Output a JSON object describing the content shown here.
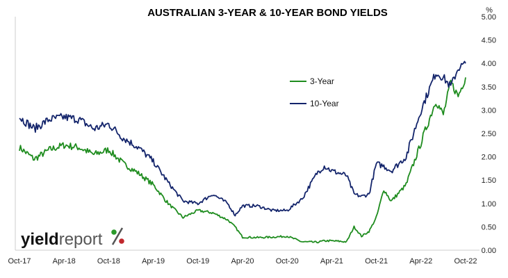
{
  "chart_data": {
    "type": "line",
    "title": "AUSTRALIAN 3-YEAR & 10-YEAR BOND YIELDS",
    "y_unit": "%",
    "ylim": [
      0,
      5
    ],
    "y_ticks": [
      "0.00",
      "0.50",
      "1.00",
      "1.50",
      "2.00",
      "2.50",
      "3.00",
      "3.50",
      "4.00",
      "4.50",
      "5.00"
    ],
    "x_ticks": [
      "Oct-17",
      "Apr-18",
      "Oct-18",
      "Apr-19",
      "Oct-19",
      "Apr-20",
      "Oct-20",
      "Apr-21",
      "Oct-21",
      "Apr-22",
      "Oct-22"
    ],
    "grid": false,
    "legend_position": "top-right inside",
    "x": [
      "2017-10",
      "2017-12",
      "2018-02",
      "2018-04",
      "2018-06",
      "2018-08",
      "2018-10",
      "2018-12",
      "2019-02",
      "2019-04",
      "2019-06",
      "2019-08",
      "2019-10",
      "2019-12",
      "2020-02",
      "2020-03",
      "2020-04",
      "2020-06",
      "2020-08",
      "2020-10",
      "2020-12",
      "2021-02",
      "2021-03",
      "2021-04",
      "2021-06",
      "2021-07",
      "2021-08",
      "2021-09",
      "2021-10",
      "2021-11",
      "2021-12",
      "2022-02",
      "2022-04",
      "2022-06",
      "2022-07",
      "2022-08",
      "2022-09",
      "2022-10"
    ],
    "series": [
      {
        "name": "3-Year",
        "color": "#1e8c1e",
        "values": [
          2.2,
          1.95,
          2.15,
          2.25,
          2.2,
          2.05,
          2.15,
          1.85,
          1.65,
          1.4,
          1.0,
          0.7,
          0.85,
          0.8,
          0.65,
          0.5,
          0.28,
          0.27,
          0.28,
          0.3,
          0.18,
          0.17,
          0.2,
          0.2,
          0.18,
          0.5,
          0.3,
          0.4,
          0.7,
          1.3,
          1.05,
          1.4,
          2.3,
          3.2,
          2.9,
          3.6,
          3.3,
          3.7
        ]
      },
      {
        "name": "10-Year",
        "color": "#13246b",
        "values": [
          2.85,
          2.6,
          2.8,
          2.85,
          2.8,
          2.6,
          2.7,
          2.4,
          2.2,
          1.9,
          1.45,
          1.05,
          1.0,
          1.2,
          1.0,
          0.75,
          0.95,
          0.95,
          0.85,
          0.85,
          1.1,
          1.65,
          1.8,
          1.7,
          1.6,
          1.2,
          1.15,
          1.2,
          1.85,
          1.8,
          1.7,
          2.0,
          3.0,
          3.8,
          3.7,
          3.5,
          3.9,
          4.0
        ]
      }
    ]
  },
  "legend": {
    "items": [
      "3-Year",
      "10-Year"
    ]
  },
  "logo": {
    "text_a": "yield",
    "text_b": "report",
    "text_c": "%",
    "text_a_color": "#111111",
    "text_b_color": "#555555"
  }
}
